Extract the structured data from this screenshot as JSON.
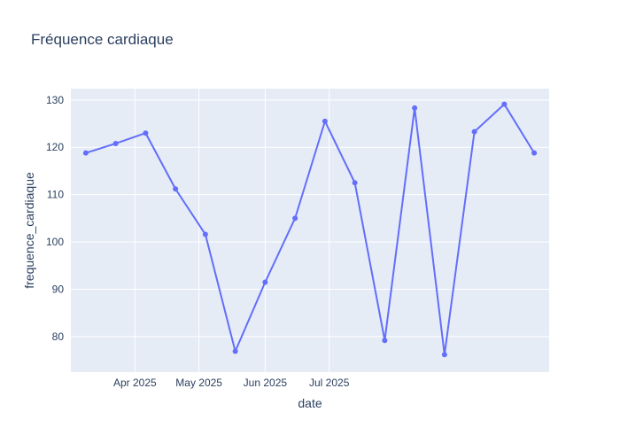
{
  "chart_data": {
    "type": "line",
    "title": "Fréquence cardiaque",
    "xlabel": "date",
    "ylabel": "frequence_cardiaque",
    "x": [
      "2025-03-09",
      "2025-03-23",
      "2025-04-06",
      "2025-04-20",
      "2025-05-04",
      "2025-05-18",
      "2025-06-01",
      "2025-06-15",
      "2025-06-29",
      "2025-07-13",
      "2025-07-27",
      "2025-08-10",
      "2025-08-24",
      "2025-09-07",
      "2025-09-21",
      "2025-10-05"
    ],
    "xlim": [
      "2025-03-02",
      "2025-10-12"
    ],
    "ylim": [
      72.5,
      132.4
    ],
    "y_ticks": [
      80,
      90,
      100,
      110,
      120,
      130
    ],
    "x_ticks": [
      {
        "value": "2025-04-01",
        "label": "Apr 2025"
      },
      {
        "value": "2025-05-01",
        "label": "May 2025"
      },
      {
        "value": "2025-06-01",
        "label": "Jun 2025"
      },
      {
        "value": "2025-07-01",
        "label": "Jul 2025"
      }
    ],
    "series": [
      {
        "values": [
          118.8,
          120.8,
          123.0,
          111.2,
          101.6,
          76.9,
          91.5,
          105.0,
          125.5,
          112.5,
          79.2,
          128.3,
          76.2,
          123.3,
          129.1,
          118.8
        ],
        "color": "#636efa"
      }
    ],
    "plot_background": "#e5ecf6",
    "grid": true,
    "legend": false
  }
}
